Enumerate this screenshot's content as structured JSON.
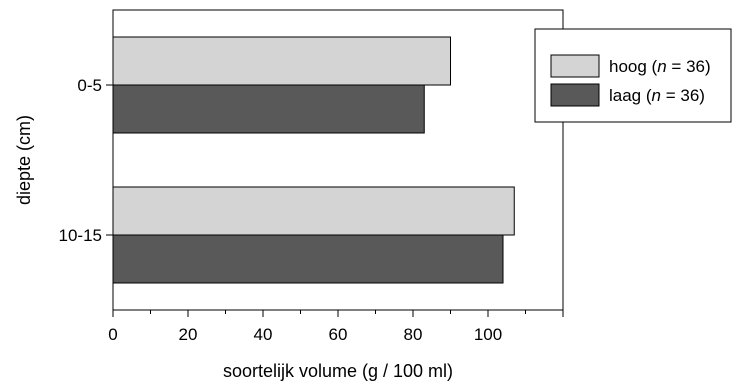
{
  "chart_data": {
    "type": "bar",
    "orientation": "horizontal",
    "categories": [
      "0-5",
      "10-15"
    ],
    "series": [
      {
        "name": "hoog",
        "n_label": "n",
        "n_value": "= 36)",
        "color": "#d4d4d4",
        "values": [
          90,
          107
        ]
      },
      {
        "name": "laag",
        "n_label": "n",
        "n_value": "= 36)",
        "color": "#595959",
        "values": [
          83,
          104
        ]
      }
    ],
    "xlabel": "soortelijk volume (g / 100 ml)",
    "ylabel": "diepte (cm)",
    "xlim": [
      0,
      120
    ],
    "xticks": [
      "0",
      "20",
      "40",
      "60",
      "80",
      "100"
    ],
    "grid": false,
    "legend_position": "top-right"
  }
}
